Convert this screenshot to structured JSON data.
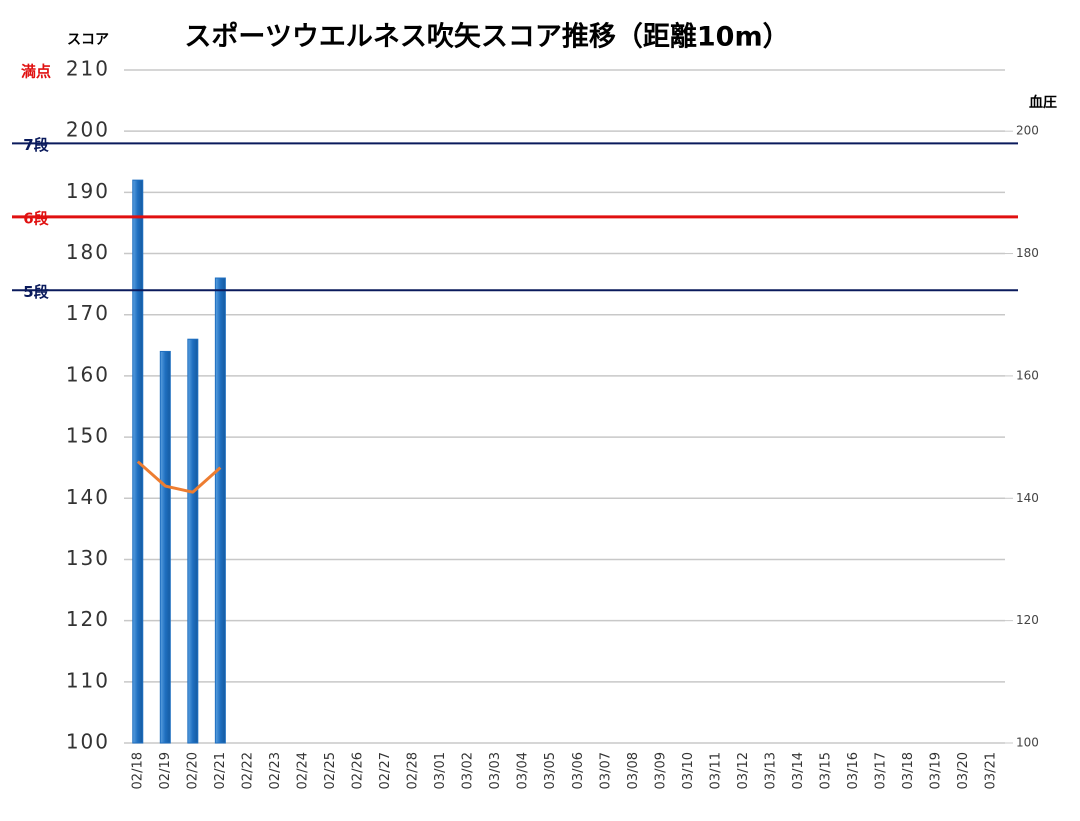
{
  "chart_data": {
    "type": "bar",
    "title": "スポーツウエルネス吹矢スコア推移（距離10m）",
    "y_axis_label": "スコア",
    "y2_axis_label": "血圧",
    "categories": [
      "02/18",
      "02/19",
      "02/20",
      "02/21",
      "02/22",
      "02/23",
      "02/24",
      "02/25",
      "02/26",
      "02/27",
      "02/28",
      "03/01",
      "03/02",
      "03/03",
      "03/04",
      "03/05",
      "03/06",
      "03/07",
      "03/08",
      "03/09",
      "03/10",
      "03/11",
      "03/12",
      "03/13",
      "03/14",
      "03/15",
      "03/16",
      "03/17",
      "03/18",
      "03/19",
      "03/20",
      "03/21"
    ],
    "series": [
      {
        "type": "bar",
        "color": "#1f6fc0",
        "values": [
          192,
          164,
          166,
          176,
          null,
          null,
          null,
          null,
          null,
          null,
          null,
          null,
          null,
          null,
          null,
          null,
          null,
          null,
          null,
          null,
          null,
          null,
          null,
          null,
          null,
          null,
          null,
          null,
          null,
          null,
          null,
          null
        ]
      },
      {
        "type": "line",
        "axis": "y2",
        "color": "#ed7d31",
        "values": [
          146,
          142,
          141,
          145,
          null,
          null,
          null,
          null,
          null,
          null,
          null,
          null,
          null,
          null,
          null,
          null,
          null,
          null,
          null,
          null,
          null,
          null,
          null,
          null,
          null,
          null,
          null,
          null,
          null,
          null,
          null,
          null
        ]
      }
    ],
    "ylim": [
      100,
      210
    ],
    "yticks": [
      100,
      110,
      120,
      130,
      140,
      150,
      160,
      170,
      180,
      190,
      200,
      210
    ],
    "y2lim": [
      100,
      210
    ],
    "y2ticks": [
      100,
      120,
      140,
      160,
      180,
      200
    ],
    "grid": true,
    "reference_lines": [
      {
        "label": "満点",
        "value": 210,
        "color": "#e01010",
        "show_line": false
      },
      {
        "label": "7段",
        "value": 198,
        "color": "#0a1a5c",
        "show_line": true
      },
      {
        "label": "6段",
        "value": 186,
        "color": "#e01010",
        "show_line": true
      },
      {
        "label": "5段",
        "value": 174,
        "color": "#0a1a5c",
        "show_line": true
      }
    ]
  }
}
